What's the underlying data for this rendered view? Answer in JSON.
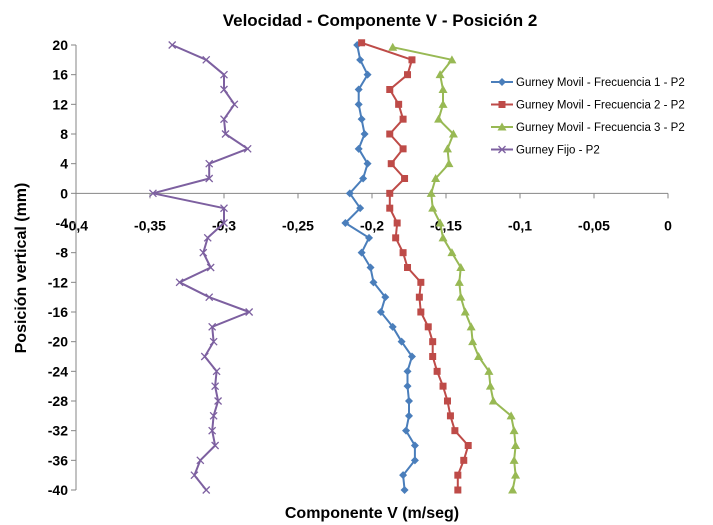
{
  "chart_data": {
    "type": "line",
    "title": "Velocidad - Componente V - Posición 2",
    "xlabel": "Componente V (m/seg)",
    "ylabel": "Posición vertical (mm)",
    "xlim": [
      -0.4,
      0
    ],
    "ylim": [
      -40,
      20
    ],
    "xticks": [
      -0.4,
      -0.35,
      -0.3,
      -0.25,
      -0.2,
      -0.15,
      -0.1,
      -0.05,
      0
    ],
    "xtick_labels": [
      "-0,4",
      "-0,35",
      "-0,3",
      "-0,25",
      "-0,2",
      "-0,15",
      "-0,1",
      "-0,05",
      "0"
    ],
    "yticks": [
      20,
      16,
      12,
      8,
      4,
      0,
      -4,
      -8,
      -12,
      -16,
      -20,
      -24,
      -28,
      -32,
      -36,
      -40
    ],
    "ytick_labels": [
      "20",
      "16",
      "12",
      "8",
      "4",
      "0",
      "-4",
      "-8",
      "-12",
      "-16",
      "-20",
      "-24",
      "-28",
      "-32",
      "-36",
      "-40"
    ],
    "grid": false,
    "legend_position": "right",
    "series": [
      {
        "name": "Gurney Movil - Frecuencia 1 - P2",
        "color": "#4a7ebb",
        "marker": "diamond",
        "points": [
          [
            -0.21,
            20
          ],
          [
            -0.208,
            18
          ],
          [
            -0.203,
            16
          ],
          [
            -0.209,
            14
          ],
          [
            -0.209,
            12
          ],
          [
            -0.207,
            10
          ],
          [
            -0.205,
            8
          ],
          [
            -0.209,
            6
          ],
          [
            -0.203,
            4
          ],
          [
            -0.206,
            2
          ],
          [
            -0.215,
            0
          ],
          [
            -0.208,
            -2
          ],
          [
            -0.218,
            -4
          ],
          [
            -0.202,
            -6
          ],
          [
            -0.207,
            -8
          ],
          [
            -0.201,
            -10
          ],
          [
            -0.199,
            -12
          ],
          [
            -0.191,
            -14
          ],
          [
            -0.194,
            -16
          ],
          [
            -0.186,
            -18
          ],
          [
            -0.18,
            -20
          ],
          [
            -0.173,
            -22
          ],
          [
            -0.176,
            -24
          ],
          [
            -0.176,
            -26
          ],
          [
            -0.175,
            -28
          ],
          [
            -0.175,
            -30
          ],
          [
            -0.177,
            -32
          ],
          [
            -0.171,
            -34
          ],
          [
            -0.171,
            -36
          ],
          [
            -0.179,
            -38
          ],
          [
            -0.178,
            -40
          ]
        ]
      },
      {
        "name": "Gurney Movil - Frecuencia 2 - P2",
        "color": "#be4b48",
        "marker": "square",
        "points": [
          [
            -0.207,
            20.3
          ],
          [
            -0.173,
            18
          ],
          [
            -0.176,
            16
          ],
          [
            -0.188,
            14
          ],
          [
            -0.182,
            12
          ],
          [
            -0.179,
            10
          ],
          [
            -0.188,
            8
          ],
          [
            -0.179,
            6
          ],
          [
            -0.187,
            4
          ],
          [
            -0.178,
            2
          ],
          [
            -0.188,
            0
          ],
          [
            -0.188,
            -2
          ],
          [
            -0.183,
            -4
          ],
          [
            -0.184,
            -6
          ],
          [
            -0.179,
            -8
          ],
          [
            -0.176,
            -10
          ],
          [
            -0.167,
            -12
          ],
          [
            -0.168,
            -14
          ],
          [
            -0.167,
            -16
          ],
          [
            -0.162,
            -18
          ],
          [
            -0.159,
            -20
          ],
          [
            -0.159,
            -22
          ],
          [
            -0.156,
            -24
          ],
          [
            -0.152,
            -26
          ],
          [
            -0.149,
            -28
          ],
          [
            -0.147,
            -30
          ],
          [
            -0.144,
            -32
          ],
          [
            -0.135,
            -34
          ],
          [
            -0.138,
            -36
          ],
          [
            -0.142,
            -38
          ],
          [
            -0.142,
            -40
          ]
        ]
      },
      {
        "name": "Gurney Movil - Frecuencia 3 - P2",
        "color": "#98b954",
        "marker": "triangle",
        "points": [
          [
            -0.186,
            19.7
          ],
          [
            -0.146,
            18
          ],
          [
            -0.154,
            16
          ],
          [
            -0.152,
            14
          ],
          [
            -0.152,
            12
          ],
          [
            -0.155,
            10
          ],
          [
            -0.145,
            8
          ],
          [
            -0.149,
            6
          ],
          [
            -0.148,
            4
          ],
          [
            -0.157,
            2
          ],
          [
            -0.16,
            0
          ],
          [
            -0.159,
            -2
          ],
          [
            -0.154,
            -4
          ],
          [
            -0.152,
            -6
          ],
          [
            -0.146,
            -8
          ],
          [
            -0.14,
            -10
          ],
          [
            -0.141,
            -12
          ],
          [
            -0.14,
            -14
          ],
          [
            -0.137,
            -16
          ],
          [
            -0.133,
            -18
          ],
          [
            -0.132,
            -20
          ],
          [
            -0.128,
            -22
          ],
          [
            -0.121,
            -24
          ],
          [
            -0.12,
            -26
          ],
          [
            -0.118,
            -28
          ],
          [
            -0.106,
            -30
          ],
          [
            -0.104,
            -32
          ],
          [
            -0.103,
            -34
          ],
          [
            -0.104,
            -36
          ],
          [
            -0.103,
            -38
          ],
          [
            -0.105,
            -40
          ]
        ]
      },
      {
        "name": "Gurney Fijo - P2",
        "color": "#7d60a0",
        "marker": "x",
        "points": [
          [
            -0.335,
            20
          ],
          [
            -0.312,
            18
          ],
          [
            -0.3,
            16
          ],
          [
            -0.3,
            14
          ],
          [
            -0.293,
            12
          ],
          [
            -0.3,
            10
          ],
          [
            -0.299,
            8
          ],
          [
            -0.284,
            6
          ],
          [
            -0.31,
            4
          ],
          [
            -0.31,
            2
          ],
          [
            -0.348,
            0
          ],
          [
            -0.3,
            -2
          ],
          [
            -0.3,
            -4
          ],
          [
            -0.311,
            -6
          ],
          [
            -0.314,
            -8
          ],
          [
            -0.309,
            -10
          ],
          [
            -0.33,
            -12
          ],
          [
            -0.31,
            -14
          ],
          [
            -0.283,
            -16
          ],
          [
            -0.308,
            -18
          ],
          [
            -0.307,
            -20
          ],
          [
            -0.313,
            -22
          ],
          [
            -0.305,
            -24
          ],
          [
            -0.306,
            -26
          ],
          [
            -0.304,
            -28
          ],
          [
            -0.307,
            -30
          ],
          [
            -0.308,
            -32
          ],
          [
            -0.306,
            -34
          ],
          [
            -0.316,
            -36
          ],
          [
            -0.32,
            -38
          ],
          [
            -0.312,
            -40
          ]
        ]
      }
    ]
  }
}
